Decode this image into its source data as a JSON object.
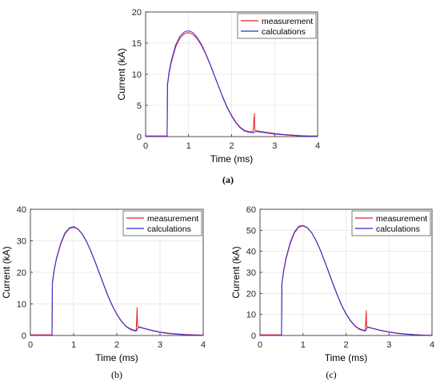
{
  "colors": {
    "measurement": "#e8202a",
    "calculations": "#2b2bd6",
    "grid": "#e6e6e6",
    "axis": "#262626"
  },
  "chart_data": [
    {
      "type": "line",
      "caption": "(a)",
      "xlabel": "Time (ms)",
      "ylabel": "Current (kA)",
      "xlim": [
        0,
        4
      ],
      "ylim": [
        0,
        20
      ],
      "xticks": [
        0,
        1,
        2,
        3,
        4
      ],
      "yticks": [
        0,
        5,
        10,
        15,
        20
      ],
      "grid": true,
      "legend_position": "top-right",
      "series": [
        {
          "name": "measurement",
          "x": [
            0,
            0.49,
            0.5,
            0.51,
            0.55,
            0.6,
            0.7,
            0.8,
            0.9,
            1.0,
            1.1,
            1.2,
            1.3,
            1.4,
            1.5,
            1.6,
            1.7,
            1.8,
            1.9,
            2.0,
            2.1,
            2.2,
            2.3,
            2.4,
            2.5,
            2.53,
            2.54,
            2.55,
            2.6,
            2.8,
            3.0,
            3.2,
            3.4,
            3.6,
            3.8,
            4.0
          ],
          "y": [
            0.1,
            0.1,
            0.1,
            8.3,
            10.3,
            12.0,
            14.4,
            15.8,
            16.5,
            16.7,
            16.4,
            15.7,
            14.6,
            13.2,
            11.6,
            9.8,
            8.0,
            6.3,
            4.7,
            3.4,
            2.3,
            1.5,
            1.0,
            0.8,
            0.8,
            3.7,
            1.2,
            1.0,
            0.9,
            0.7,
            0.5,
            0.35,
            0.25,
            0.15,
            0.1,
            0.1
          ]
        },
        {
          "name": "calculations",
          "x": [
            0,
            0.49,
            0.5,
            0.51,
            0.55,
            0.6,
            0.7,
            0.8,
            0.9,
            1.0,
            1.1,
            1.2,
            1.3,
            1.4,
            1.5,
            1.6,
            1.7,
            1.8,
            1.9,
            2.0,
            2.1,
            2.2,
            2.3,
            2.4,
            2.5,
            2.55,
            2.6,
            2.8,
            3.0,
            3.2,
            3.4,
            3.6,
            3.8,
            4.0
          ],
          "y": [
            0,
            0,
            0,
            8.5,
            10.6,
            12.3,
            14.7,
            16.1,
            16.8,
            17.0,
            16.7,
            15.9,
            14.8,
            13.3,
            11.6,
            9.8,
            8.0,
            6.2,
            4.6,
            3.3,
            2.2,
            1.4,
            0.9,
            0.7,
            0.6,
            0.8,
            0.8,
            0.6,
            0.4,
            0.3,
            0.2,
            0.1,
            0.05,
            0.0
          ]
        }
      ]
    },
    {
      "type": "line",
      "caption": "(b)",
      "xlabel": "Time (ms)",
      "ylabel": "Current (kA)",
      "xlim": [
        0,
        4
      ],
      "ylim": [
        0,
        40
      ],
      "xticks": [
        0,
        1,
        2,
        3,
        4
      ],
      "yticks": [
        0,
        10,
        20,
        30,
        40
      ],
      "grid": true,
      "legend_position": "top-right",
      "series": [
        {
          "name": "measurement",
          "x": [
            0,
            0.49,
            0.5,
            0.51,
            0.55,
            0.6,
            0.7,
            0.8,
            0.9,
            1.0,
            1.1,
            1.2,
            1.3,
            1.4,
            1.5,
            1.6,
            1.7,
            1.8,
            1.9,
            2.0,
            2.1,
            2.2,
            2.3,
            2.4,
            2.45,
            2.47,
            2.48,
            2.5,
            2.6,
            2.8,
            3.0,
            3.2,
            3.4,
            3.6,
            3.8,
            4.0
          ],
          "y": [
            0.2,
            0.2,
            0.2,
            16.5,
            20.5,
            24.0,
            28.9,
            32.2,
            33.9,
            34.3,
            33.7,
            32.1,
            29.7,
            26.7,
            23.3,
            19.7,
            16.0,
            12.5,
            9.4,
            6.8,
            4.7,
            3.1,
            2.2,
            1.7,
            1.6,
            8.8,
            3.0,
            2.8,
            2.4,
            1.7,
            1.1,
            0.7,
            0.5,
            0.3,
            0.2,
            0.1
          ]
        },
        {
          "name": "calculations",
          "x": [
            0,
            0.49,
            0.5,
            0.51,
            0.55,
            0.6,
            0.7,
            0.8,
            0.9,
            1.0,
            1.1,
            1.2,
            1.3,
            1.4,
            1.5,
            1.6,
            1.7,
            1.8,
            1.9,
            2.0,
            2.1,
            2.2,
            2.3,
            2.4,
            2.45,
            2.5,
            2.6,
            2.8,
            3.0,
            3.2,
            3.4,
            3.6,
            3.8,
            4.0
          ],
          "y": [
            0,
            0,
            0,
            16.8,
            20.8,
            24.3,
            29.2,
            32.5,
            34.1,
            34.5,
            33.8,
            32.2,
            29.8,
            26.7,
            23.3,
            19.6,
            15.9,
            12.4,
            9.3,
            6.7,
            4.6,
            3.0,
            2.0,
            1.5,
            1.4,
            2.6,
            2.3,
            1.6,
            1.0,
            0.6,
            0.4,
            0.2,
            0.1,
            0.0
          ]
        }
      ]
    },
    {
      "type": "line",
      "caption": "(c)",
      "xlabel": "Time (ms)",
      "ylabel": "Current (kA)",
      "xlim": [
        0,
        4
      ],
      "ylim": [
        0,
        60
      ],
      "xticks": [
        0,
        1,
        2,
        3,
        4
      ],
      "yticks": [
        0,
        10,
        20,
        30,
        40,
        50,
        60
      ],
      "grid": true,
      "legend_position": "top-right",
      "series": [
        {
          "name": "measurement",
          "x": [
            0,
            0.49,
            0.5,
            0.51,
            0.55,
            0.6,
            0.7,
            0.8,
            0.9,
            1.0,
            1.1,
            1.2,
            1.3,
            1.4,
            1.5,
            1.6,
            1.7,
            1.8,
            1.9,
            2.0,
            2.1,
            2.2,
            2.3,
            2.4,
            2.45,
            2.47,
            2.48,
            2.5,
            2.6,
            2.8,
            3.0,
            3.2,
            3.4,
            3.6,
            3.8,
            4.0
          ],
          "y": [
            0.3,
            0.3,
            0.3,
            24.5,
            30.5,
            36.0,
            43.5,
            48.8,
            51.5,
            52.1,
            51.2,
            48.9,
            45.3,
            40.8,
            35.6,
            30.1,
            24.5,
            19.2,
            14.4,
            10.4,
            7.2,
            4.8,
            3.3,
            2.6,
            2.4,
            11.8,
            4.3,
            4.1,
            3.5,
            2.5,
            1.7,
            1.1,
            0.7,
            0.4,
            0.2,
            0.1
          ]
        },
        {
          "name": "calculations",
          "x": [
            0,
            0.49,
            0.5,
            0.51,
            0.55,
            0.6,
            0.7,
            0.8,
            0.9,
            1.0,
            1.1,
            1.2,
            1.3,
            1.4,
            1.5,
            1.6,
            1.7,
            1.8,
            1.9,
            2.0,
            2.1,
            2.2,
            2.3,
            2.4,
            2.45,
            2.5,
            2.6,
            2.8,
            3.0,
            3.2,
            3.4,
            3.6,
            3.8,
            4.0
          ],
          "y": [
            0,
            0,
            0,
            25.0,
            31.0,
            36.5,
            44.0,
            49.2,
            51.9,
            52.3,
            51.3,
            48.9,
            45.2,
            40.6,
            35.4,
            29.9,
            24.3,
            19.0,
            14.2,
            10.2,
            7.0,
            4.6,
            3.0,
            2.3,
            2.1,
            3.9,
            3.4,
            2.4,
            1.6,
            1.0,
            0.6,
            0.3,
            0.1,
            0.0
          ]
        }
      ]
    }
  ]
}
